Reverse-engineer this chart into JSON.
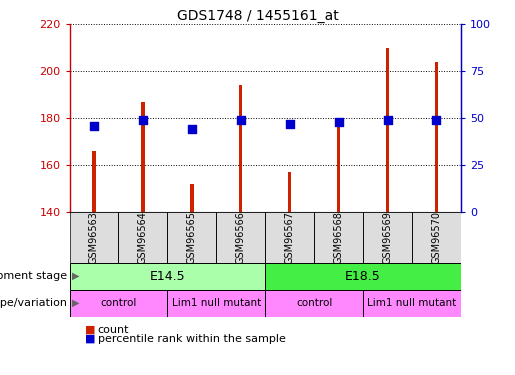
{
  "title": "GDS1748 / 1455161_at",
  "samples": [
    "GSM96563",
    "GSM96564",
    "GSM96565",
    "GSM96566",
    "GSM96567",
    "GSM96568",
    "GSM96569",
    "GSM96570"
  ],
  "counts": [
    166,
    187,
    152,
    194,
    157,
    177,
    210,
    204
  ],
  "percentile_ranks": [
    46,
    49,
    44,
    49,
    47,
    48,
    49,
    49
  ],
  "ylim_left": [
    140,
    220
  ],
  "ylim_right": [
    0,
    100
  ],
  "yticks_left": [
    140,
    160,
    180,
    200,
    220
  ],
  "yticks_right": [
    0,
    25,
    50,
    75,
    100
  ],
  "left_axis_color": "#cc0000",
  "right_axis_color": "#0000cc",
  "bar_color": "#cc2200",
  "dot_color": "#0000cc",
  "development_stages": [
    {
      "label": "E14.5",
      "start": 0,
      "end": 3,
      "color": "#aaffaa"
    },
    {
      "label": "E18.5",
      "start": 4,
      "end": 7,
      "color": "#44ee44"
    }
  ],
  "genotype_groups": [
    {
      "label": "control",
      "start": 0,
      "end": 1
    },
    {
      "label": "Lim1 null mutant",
      "start": 2,
      "end": 3
    },
    {
      "label": "control",
      "start": 4,
      "end": 5
    },
    {
      "label": "Lim1 null mutant",
      "start": 6,
      "end": 7
    }
  ],
  "genotype_color": "#ff88ff",
  "legend_count_label": "count",
  "legend_pct_label": "percentile rank within the sample",
  "dev_stage_label": "development stage",
  "genotype_label": "genotype/variation",
  "bar_width": 0.07,
  "dot_size": 30
}
